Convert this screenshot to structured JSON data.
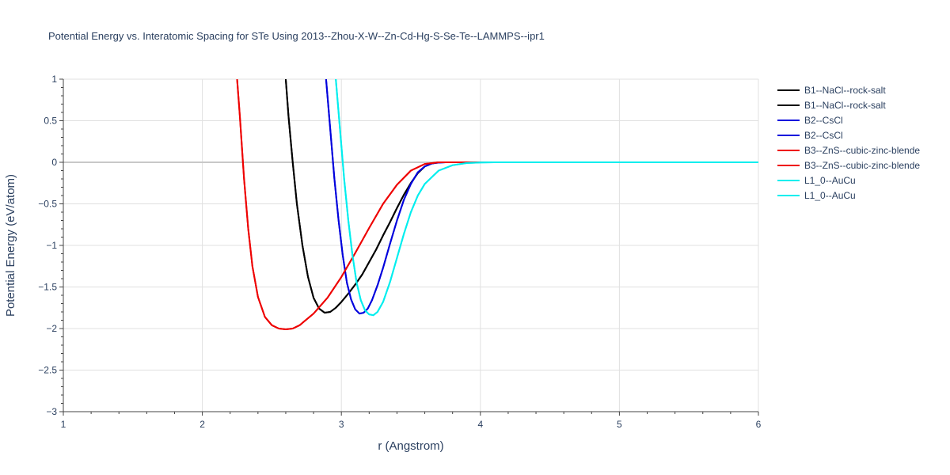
{
  "chart_data": {
    "type": "line",
    "title": "Potential Energy vs. Interatomic Spacing for STe Using 2013--Zhou-X-W--Zn-Cd-Hg-S-Se-Te--LAMMPS--ipr1",
    "xlabel": "r (Angstrom)",
    "ylabel": "Potential Energy (eV/atom)",
    "xlim": [
      1,
      6
    ],
    "ylim": [
      -3,
      1
    ],
    "x_ticks": [
      1,
      2,
      3,
      4,
      5,
      6
    ],
    "x_tick_labels": [
      "1",
      "2",
      "3",
      "4",
      "5",
      "6"
    ],
    "y_ticks": [
      1,
      0.5,
      0,
      -0.5,
      -1,
      -1.5,
      -2,
      -2.5,
      -3
    ],
    "y_tick_labels": [
      "1",
      "0.5",
      "0",
      "−0.5",
      "−1",
      "−1.5",
      "−2",
      "−2.5",
      "−3"
    ],
    "grid": true,
    "legend_position": "right",
    "series": [
      {
        "name": "B1--NaCl--rock-salt",
        "color": "#000000",
        "x": [
          2.6,
          2.62,
          2.65,
          2.68,
          2.72,
          2.76,
          2.8,
          2.84,
          2.88,
          2.92,
          2.96,
          3.0,
          3.05,
          3.1,
          3.15,
          3.2,
          3.25,
          3.3,
          3.35,
          3.4,
          3.45,
          3.5,
          3.55,
          3.6,
          3.65,
          3.7,
          3.8,
          3.9,
          4.0,
          6.0
        ],
        "y": [
          1.0,
          0.55,
          0.0,
          -0.5,
          -1.0,
          -1.38,
          -1.63,
          -1.76,
          -1.81,
          -1.8,
          -1.75,
          -1.68,
          -1.58,
          -1.47,
          -1.35,
          -1.2,
          -1.05,
          -0.88,
          -0.72,
          -0.55,
          -0.39,
          -0.25,
          -0.13,
          -0.05,
          -0.015,
          0.0,
          0.0,
          0.0,
          0.0,
          0.0
        ]
      },
      {
        "name": "B1--NaCl--rock-salt",
        "color": "#000000",
        "x": [
          2.6,
          2.62,
          2.65,
          2.68,
          2.72,
          2.76,
          2.8,
          2.84,
          2.88,
          2.92,
          2.96,
          3.0,
          3.05,
          3.1,
          3.15,
          3.2,
          3.25,
          3.3,
          3.35,
          3.4,
          3.45,
          3.5,
          3.55,
          3.6,
          3.65,
          3.7,
          3.8,
          3.9,
          4.0,
          6.0
        ],
        "y": [
          1.0,
          0.55,
          0.0,
          -0.5,
          -1.0,
          -1.38,
          -1.63,
          -1.76,
          -1.81,
          -1.8,
          -1.75,
          -1.68,
          -1.58,
          -1.47,
          -1.35,
          -1.2,
          -1.05,
          -0.88,
          -0.72,
          -0.55,
          -0.39,
          -0.25,
          -0.13,
          -0.05,
          -0.015,
          0.0,
          0.0,
          0.0,
          0.0,
          0.0
        ]
      },
      {
        "name": "B2--CsCl",
        "color": "#0000dd",
        "x": [
          2.89,
          2.92,
          2.95,
          2.98,
          3.01,
          3.04,
          3.07,
          3.1,
          3.13,
          3.16,
          3.19,
          3.22,
          3.26,
          3.3,
          3.35,
          3.4,
          3.45,
          3.5,
          3.55,
          3.6,
          3.65,
          3.7,
          3.75,
          3.8,
          3.9,
          4.0,
          6.0
        ],
        "y": [
          1.0,
          0.4,
          -0.2,
          -0.7,
          -1.12,
          -1.45,
          -1.65,
          -1.77,
          -1.82,
          -1.81,
          -1.76,
          -1.66,
          -1.48,
          -1.27,
          -0.98,
          -0.7,
          -0.45,
          -0.26,
          -0.12,
          -0.05,
          -0.015,
          -0.004,
          0.0,
          0.0,
          0.0,
          0.0,
          0.0
        ]
      },
      {
        "name": "B2--CsCl",
        "color": "#0000dd",
        "x": [
          2.89,
          2.92,
          2.95,
          2.98,
          3.01,
          3.04,
          3.07,
          3.1,
          3.13,
          3.16,
          3.19,
          3.22,
          3.26,
          3.3,
          3.35,
          3.4,
          3.45,
          3.5,
          3.55,
          3.6,
          3.65,
          3.7,
          3.75,
          3.8,
          3.9,
          4.0,
          6.0
        ],
        "y": [
          1.0,
          0.4,
          -0.2,
          -0.7,
          -1.12,
          -1.45,
          -1.65,
          -1.77,
          -1.82,
          -1.81,
          -1.76,
          -1.66,
          -1.48,
          -1.27,
          -0.98,
          -0.7,
          -0.45,
          -0.26,
          -0.12,
          -0.05,
          -0.015,
          -0.004,
          0.0,
          0.0,
          0.0,
          0.0,
          0.0
        ]
      },
      {
        "name": "B3--ZnS--cubic-zinc-blende",
        "color": "#ee0000",
        "x": [
          2.25,
          2.27,
          2.3,
          2.33,
          2.36,
          2.4,
          2.45,
          2.5,
          2.55,
          2.6,
          2.65,
          2.7,
          2.8,
          2.9,
          3.0,
          3.1,
          3.2,
          3.3,
          3.4,
          3.5,
          3.6,
          3.7,
          3.8,
          4.0,
          6.0
        ],
        "y": [
          1.0,
          0.55,
          -0.2,
          -0.8,
          -1.25,
          -1.62,
          -1.86,
          -1.96,
          -2.0,
          -2.01,
          -2.0,
          -1.96,
          -1.82,
          -1.63,
          -1.38,
          -1.09,
          -0.79,
          -0.5,
          -0.27,
          -0.1,
          -0.02,
          0.0,
          0.0,
          0.0,
          0.0
        ]
      },
      {
        "name": "B3--ZnS--cubic-zinc-blende",
        "color": "#ee0000",
        "x": [
          2.25,
          2.27,
          2.3,
          2.33,
          2.36,
          2.4,
          2.45,
          2.5,
          2.55,
          2.6,
          2.65,
          2.7,
          2.8,
          2.9,
          3.0,
          3.1,
          3.2,
          3.3,
          3.4,
          3.5,
          3.6,
          3.7,
          3.8,
          4.0,
          6.0
        ],
        "y": [
          1.0,
          0.55,
          -0.2,
          -0.8,
          -1.25,
          -1.62,
          -1.86,
          -1.96,
          -2.0,
          -2.01,
          -2.0,
          -1.96,
          -1.82,
          -1.63,
          -1.38,
          -1.09,
          -0.79,
          -0.5,
          -0.27,
          -0.1,
          -0.02,
          0.0,
          0.0,
          0.0,
          0.0
        ]
      },
      {
        "name": "L1_0--AuCu",
        "color": "#00eeee",
        "x": [
          2.96,
          2.99,
          3.02,
          3.05,
          3.08,
          3.11,
          3.14,
          3.17,
          3.2,
          3.23,
          3.26,
          3.3,
          3.35,
          3.4,
          3.45,
          3.5,
          3.55,
          3.6,
          3.7,
          3.8,
          3.9,
          4.0,
          4.1,
          4.2,
          6.0
        ],
        "y": [
          1.0,
          0.4,
          -0.2,
          -0.7,
          -1.12,
          -1.45,
          -1.66,
          -1.78,
          -1.83,
          -1.84,
          -1.8,
          -1.68,
          -1.44,
          -1.15,
          -0.86,
          -0.6,
          -0.4,
          -0.26,
          -0.1,
          -0.035,
          -0.01,
          -0.003,
          0.0,
          0.0,
          0.0
        ]
      },
      {
        "name": "L1_0--AuCu",
        "color": "#00eeee",
        "x": [
          2.96,
          2.99,
          3.02,
          3.05,
          3.08,
          3.11,
          3.14,
          3.17,
          3.2,
          3.23,
          3.26,
          3.3,
          3.35,
          3.4,
          3.45,
          3.5,
          3.55,
          3.6,
          3.7,
          3.8,
          3.9,
          4.0,
          4.1,
          4.2,
          6.0
        ],
        "y": [
          1.0,
          0.4,
          -0.2,
          -0.7,
          -1.12,
          -1.45,
          -1.66,
          -1.78,
          -1.83,
          -1.84,
          -1.8,
          -1.68,
          -1.44,
          -1.15,
          -0.86,
          -0.6,
          -0.4,
          -0.26,
          -0.1,
          -0.035,
          -0.01,
          -0.003,
          0.0,
          0.0,
          0.0
        ]
      }
    ]
  }
}
